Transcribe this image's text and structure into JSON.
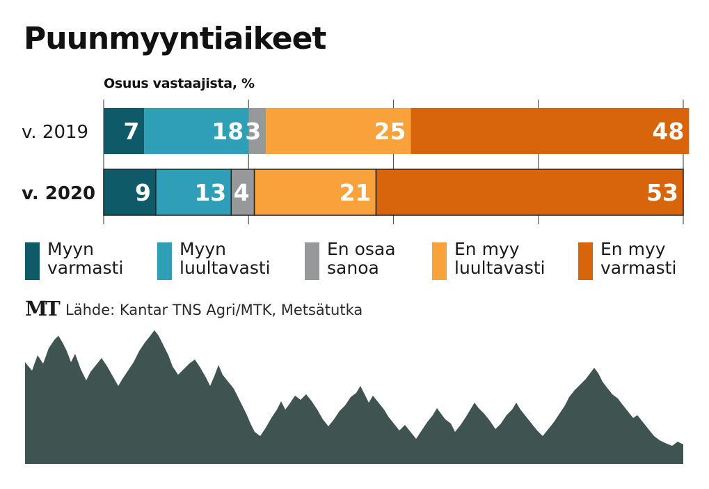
{
  "title": "Puunmyyntiaikeet",
  "subtitle": "Osuus vastaajista, %",
  "chart_data": {
    "type": "bar",
    "orientation": "horizontal",
    "stacked": true,
    "title": "Puunmyyntiaikeet",
    "xlabel": "",
    "ylabel": "",
    "xlim": [
      0,
      100
    ],
    "grid": true,
    "legend_position": "bottom",
    "categories": [
      "v. 2019",
      "v. 2020"
    ],
    "category_bold": [
      false,
      true
    ],
    "series": [
      {
        "name": "Myyn\nvarmasti",
        "values": [
          7,
          9
        ],
        "color": "#0e5a68"
      },
      {
        "name": "Myyn\nluultavasti",
        "values": [
          18,
          13
        ],
        "color": "#2f9fb7"
      },
      {
        "name": "En osaa\nsanoa",
        "values": [
          3,
          4
        ],
        "color": "#96989a"
      },
      {
        "name": "En myy\nluultavasti",
        "values": [
          25,
          21
        ],
        "color": "#f9a23b"
      },
      {
        "name": "En myy\nvarmasti",
        "values": [
          48,
          53
        ],
        "color": "#d8640b"
      }
    ]
  },
  "source": {
    "logo_text": "MT",
    "text": "Lähde: Kantar TNS Agri/MTK, Metsätutka"
  },
  "colors": {
    "forest": "#3f5450",
    "grid": "#555555",
    "label_text": "#ffffff"
  },
  "decoration": "forest-silhouette"
}
